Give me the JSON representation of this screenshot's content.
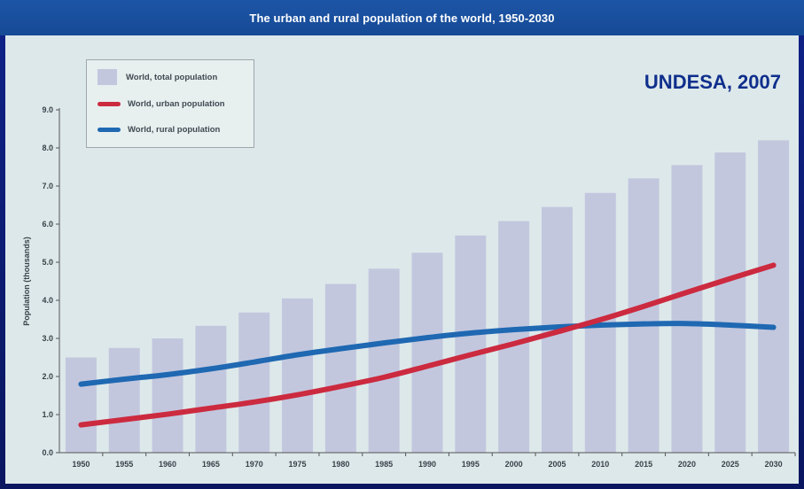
{
  "title": "The urban and rural population of the world, 1950-2030",
  "source": "UNDESA, 2007",
  "colors": {
    "bars": "#c2c7de",
    "urban": "#cc2a3f",
    "rural": "#1f68b2",
    "background": "#dde8ea",
    "title_bar": "#1a4fa0"
  },
  "chart_data": {
    "type": "bar",
    "categories": [
      "1950",
      "1955",
      "1960",
      "1965",
      "1970",
      "1975",
      "1980",
      "1985",
      "1990",
      "1995",
      "2000",
      "2005",
      "2010",
      "2015",
      "2020",
      "2025",
      "2030"
    ],
    "ylabel": "Population (thousands)",
    "xlabel": "",
    "ylim": [
      0,
      9
    ],
    "yticks": [
      "0.0",
      "1.0",
      "2.0",
      "3.0",
      "4.0",
      "5.0",
      "6.0",
      "7.0",
      "8.0",
      "9.0"
    ],
    "grid": false,
    "legend_position": "top-left",
    "series": [
      {
        "name": "World, total population",
        "kind": "bar",
        "values": [
          2.5,
          2.75,
          3.0,
          3.33,
          3.68,
          4.05,
          4.43,
          4.83,
          5.25,
          5.7,
          6.08,
          6.45,
          6.82,
          7.2,
          7.55,
          7.88,
          8.2
        ]
      },
      {
        "name": "World, urban population",
        "kind": "line",
        "values": [
          0.73,
          0.87,
          1.01,
          1.17,
          1.33,
          1.52,
          1.74,
          1.98,
          2.27,
          2.57,
          2.86,
          3.17,
          3.49,
          3.84,
          4.21,
          4.57,
          4.92
        ]
      },
      {
        "name": "World, rural population",
        "kind": "line",
        "values": [
          1.8,
          1.93,
          2.05,
          2.2,
          2.38,
          2.57,
          2.73,
          2.88,
          3.02,
          3.14,
          3.23,
          3.3,
          3.35,
          3.38,
          3.39,
          3.35,
          3.29
        ]
      }
    ]
  }
}
